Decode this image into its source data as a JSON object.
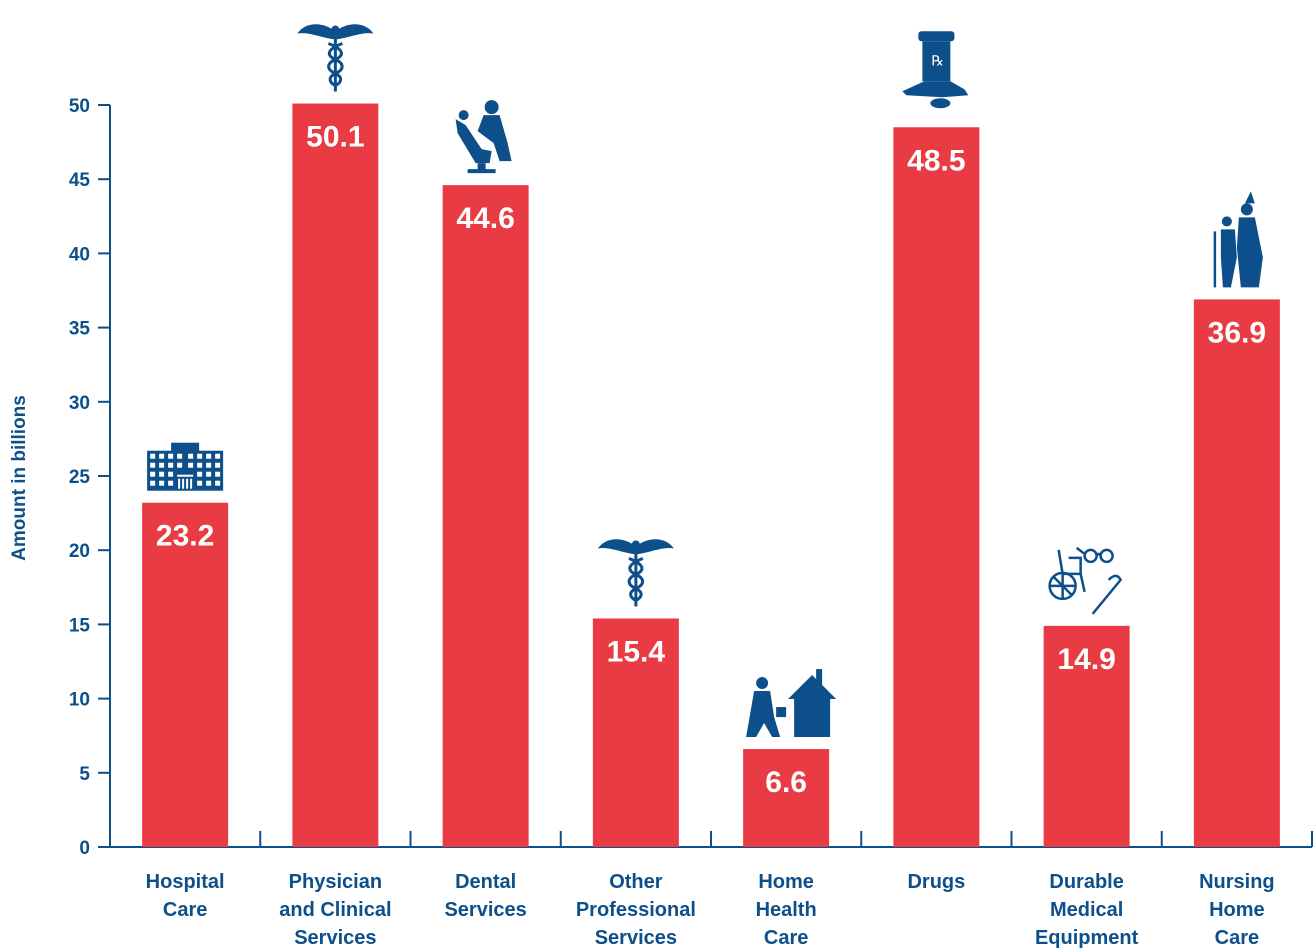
{
  "chart_data": {
    "type": "bar",
    "ylabel": "Amount in billions",
    "ylim": [
      0,
      50
    ],
    "yticks": [
      "0",
      "5",
      "10",
      "15",
      "20",
      "25",
      "30",
      "35",
      "40",
      "45",
      "50"
    ],
    "categories": [
      [
        "Hospital",
        "Care"
      ],
      [
        "Physician",
        "and Clinical",
        "Services"
      ],
      [
        "Dental",
        "Services"
      ],
      [
        "Other",
        "Professional",
        "Services"
      ],
      [
        "Home",
        "Health",
        "Care"
      ],
      [
        "Drugs"
      ],
      [
        "Durable",
        "Medical",
        "Equipment"
      ],
      [
        "Nursing",
        "Home",
        "Care"
      ]
    ],
    "values": [
      23.2,
      50.1,
      44.6,
      15.4,
      6.6,
      48.5,
      14.9,
      36.9
    ],
    "value_labels": [
      "23.2",
      "50.1",
      "44.6",
      "15.4",
      "6.6",
      "48.5",
      "14.9",
      "36.9"
    ],
    "icons": [
      "hospital-building-icon",
      "caduceus-icon",
      "dentist-chair-icon",
      "caduceus-icon",
      "home-visit-icon",
      "prescription-bottle-icon",
      "wheelchair-glasses-cane-icon",
      "nursing-caregiver-icon"
    ],
    "colors": {
      "bar": "#e93b43",
      "axis": "#0d4f8b",
      "icon": "#0d4f8b",
      "value_text": "#ffffff"
    },
    "grid": false,
    "legend": "none"
  }
}
